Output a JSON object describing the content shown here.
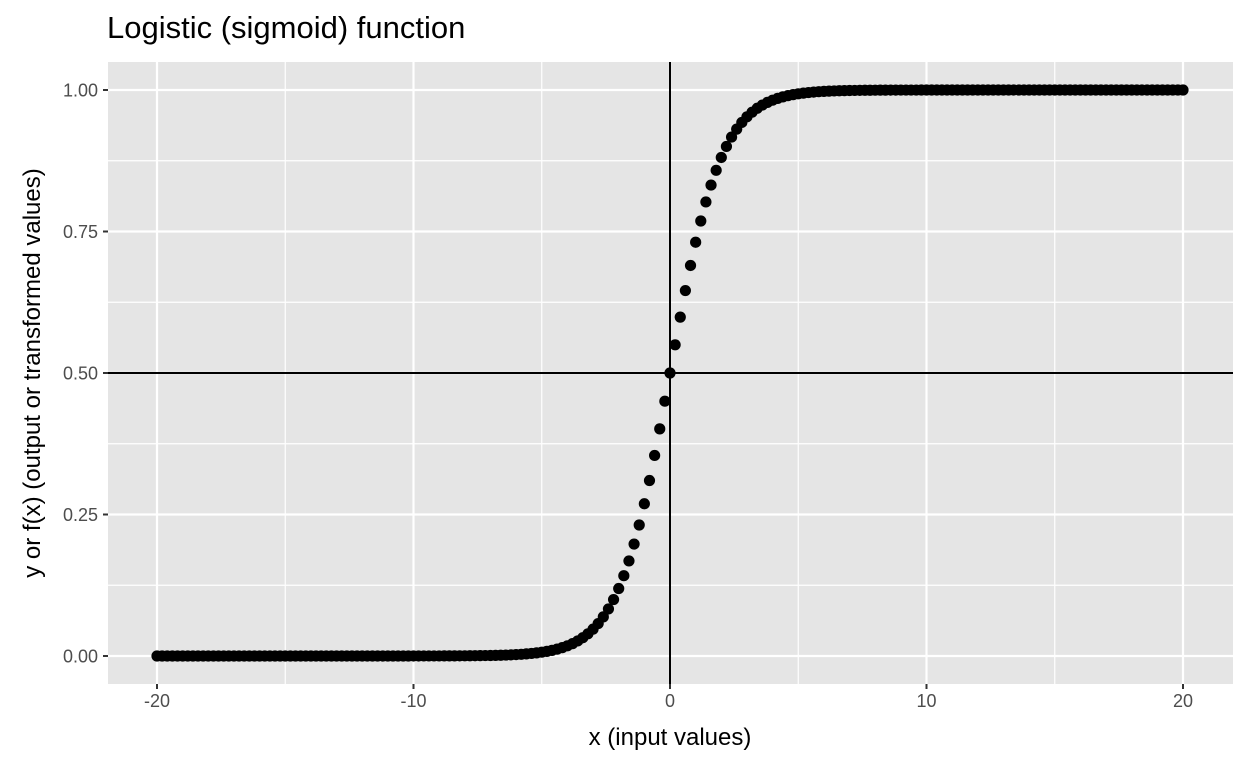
{
  "chart_data": {
    "type": "scatter",
    "title": "Logistic (sigmoid) function",
    "xlabel": "x (input values)",
    "ylabel": "y or f(x) (output or transformed values)",
    "xlim": [
      -22,
      22
    ],
    "ylim": [
      -0.05,
      1.05
    ],
    "x_ticks": [
      -20,
      -10,
      0,
      10,
      20
    ],
    "x_tick_labels": [
      "-20",
      "-10",
      "0",
      "10",
      "20"
    ],
    "y_ticks": [
      0,
      0.25,
      0.5,
      0.75,
      1.0
    ],
    "y_tick_labels": [
      "0.00",
      "0.25",
      "0.50",
      "0.75",
      "1.00"
    ],
    "grid": true,
    "legend": "none",
    "reference_lines": {
      "hline": 0.5,
      "vline": 0
    },
    "function": "y = 1 / (1 + exp(-x))",
    "x_range": [
      -20,
      20
    ],
    "x_step": 0.2,
    "n_points": 201,
    "sample_points": [
      {
        "x": -20,
        "y": 0.0
      },
      {
        "x": -10,
        "y": 5e-05
      },
      {
        "x": -5,
        "y": 0.0067
      },
      {
        "x": -2,
        "y": 0.1192
      },
      {
        "x": -1,
        "y": 0.2689
      },
      {
        "x": 0,
        "y": 0.5
      },
      {
        "x": 1,
        "y": 0.7311
      },
      {
        "x": 2,
        "y": 0.8808
      },
      {
        "x": 5,
        "y": 0.9933
      },
      {
        "x": 10,
        "y": 0.99995
      },
      {
        "x": 20,
        "y": 1.0
      }
    ],
    "colors": {
      "panel": "#e5e5e5",
      "grid": "#ffffff",
      "points": "#000000",
      "ref_lines": "#000000",
      "tick_text": "#4d4d4d"
    }
  }
}
